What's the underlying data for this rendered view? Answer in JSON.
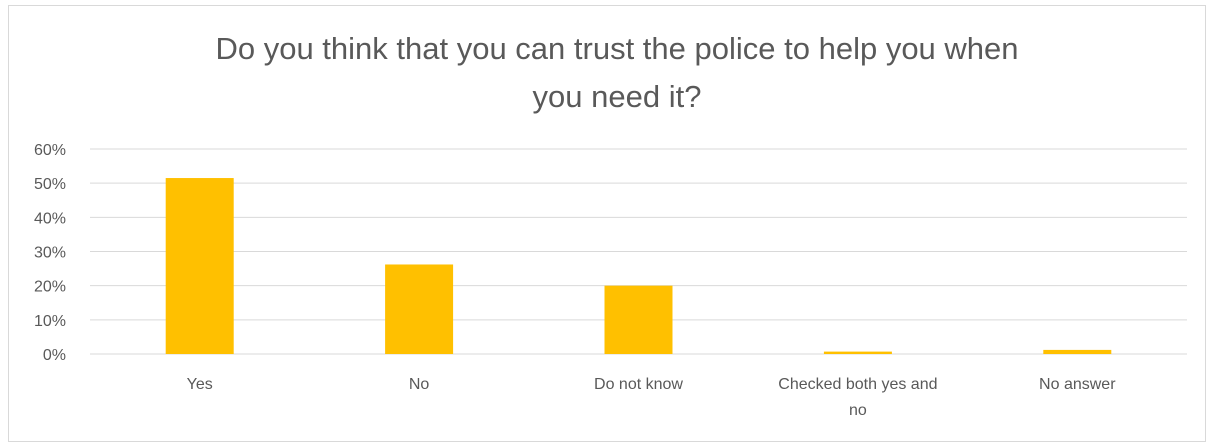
{
  "chart_data": {
    "type": "bar",
    "title_lines": [
      "Do you think that you can trust the police to help you when",
      "you need it?"
    ],
    "categories": [
      [
        "Yes"
      ],
      [
        "No"
      ],
      [
        "Do not know"
      ],
      [
        "Checked both yes and",
        "no"
      ],
      [
        "No answer"
      ]
    ],
    "values": [
      0.515,
      0.262,
      0.2,
      0.007,
      0.012
    ],
    "yticks": [
      "0%",
      "10%",
      "20%",
      "30%",
      "40%",
      "50%",
      "60%"
    ],
    "ylim": [
      0,
      0.6
    ],
    "grid": true,
    "legend": "none",
    "bar_color": "#ffc000"
  }
}
